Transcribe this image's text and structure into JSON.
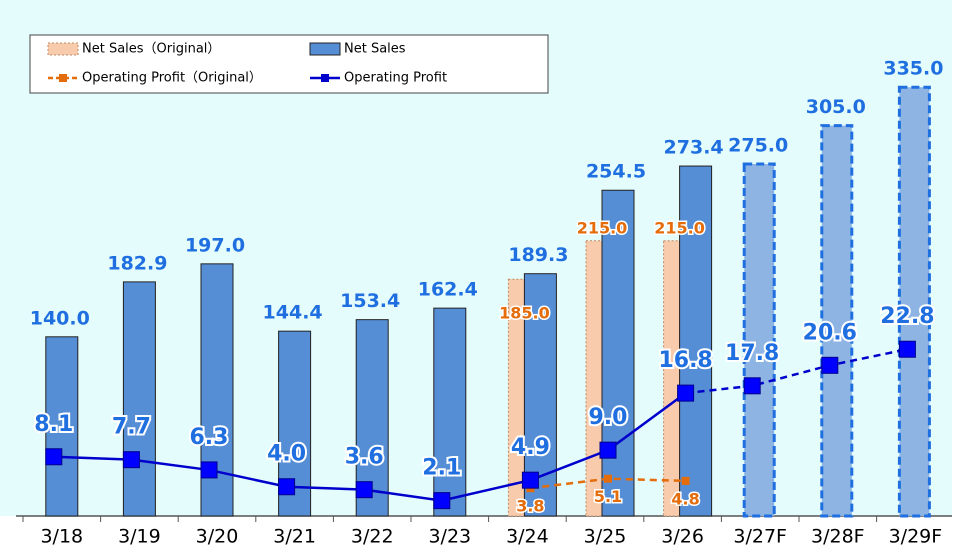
{
  "chart_data": {
    "type": "bar_line",
    "categories": [
      "3/18",
      "3/19",
      "3/20",
      "3/21",
      "3/22",
      "3/23",
      "3/24",
      "3/25",
      "3/26",
      "3/27F",
      "3/28F",
      "3/29F"
    ],
    "ylim": [
      0,
      400
    ],
    "y2lim": [
      0,
      70
    ],
    "forecast": [
      false,
      false,
      false,
      false,
      false,
      false,
      false,
      false,
      false,
      true,
      true,
      true
    ],
    "series": [
      {
        "name": "Net Sales（Original）",
        "type": "bar",
        "color": "#f8cbad",
        "label_color": "#e46c0a",
        "values": [
          null,
          null,
          null,
          null,
          null,
          null,
          185.0,
          215.0,
          215.0,
          null,
          null,
          null
        ],
        "value_labels": [
          null,
          null,
          null,
          null,
          null,
          null,
          "185.0",
          "215.0",
          "215.0",
          null,
          null,
          null
        ]
      },
      {
        "name": "Net Sales",
        "type": "bar",
        "color": "#558ed5",
        "forecast_color": "#8eb4e3",
        "label_color": "#1f6fe0",
        "values": [
          140.0,
          182.9,
          197.0,
          144.4,
          153.4,
          162.4,
          189.3,
          254.5,
          273.4,
          275.0,
          305.0,
          335.0
        ],
        "value_labels": [
          "140.0",
          "182.9",
          "197.0",
          "144.4",
          "153.4",
          "162.4",
          "189.3",
          "254.5",
          "273.4",
          "275.0",
          "305.0",
          "335.0"
        ]
      },
      {
        "name": "Operating Profit（Original）",
        "type": "line",
        "axis": "y2",
        "color": "#e46c0a",
        "dashed": true,
        "values": [
          null,
          null,
          null,
          null,
          null,
          null,
          3.8,
          5.1,
          4.8,
          null,
          null,
          null
        ]
      },
      {
        "name": "Operating Profit",
        "type": "line",
        "axis": "y2",
        "color": "#0000cc",
        "label_color": "#1f6fe0",
        "values": [
          8.1,
          7.7,
          6.3,
          4.0,
          3.6,
          2.1,
          4.9,
          9.0,
          16.8,
          17.8,
          20.6,
          22.8
        ],
        "value_labels": [
          "8.1",
          "7.7",
          "6.3",
          "4.0",
          "3.6",
          "2.1",
          "4.9",
          "9.0",
          "16.8",
          "17.8",
          "20.6",
          "22.8"
        ]
      }
    ]
  }
}
